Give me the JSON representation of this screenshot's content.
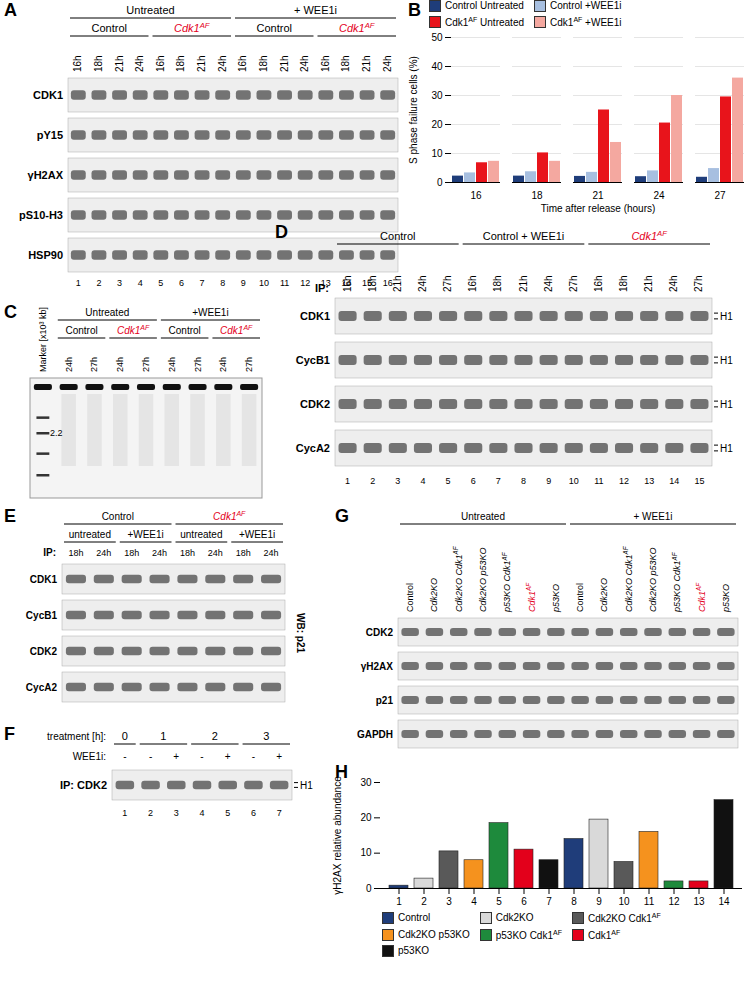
{
  "blots": [
    {
      "label": "A",
      "groups": [
        {
          "text": "Untreated",
          "lanes": [
            1,
            8
          ]
        },
        {
          "text": "+ WEE1i",
          "lanes": [
            9,
            16
          ]
        }
      ],
      "subgroups": [
        {
          "text": "Control",
          "lanes": [
            1,
            4
          ]
        },
        {
          "text": "Cdk1AF",
          "lanes": [
            5,
            8
          ]
        },
        {
          "text": "Control",
          "lanes": [
            9,
            12
          ]
        },
        {
          "text": "Cdk1AF",
          "lanes": [
            13,
            16
          ]
        }
      ],
      "lane_labels": [
        "16h",
        "18h",
        "21h",
        "24h",
        "16h",
        "18h",
        "21h",
        "24h",
        "16h",
        "18h",
        "21h",
        "24h",
        "16h",
        "18h",
        "21h",
        "24h"
      ],
      "rows": [
        "CDK1",
        "pY15",
        "γH2AX",
        "pS10-H3",
        "HSP90"
      ],
      "lane_numbers": [
        1,
        2,
        3,
        4,
        5,
        6,
        7,
        8,
        9,
        10,
        11,
        12,
        13,
        14,
        15,
        16
      ]
    },
    {
      "label": "C",
      "groups": [
        {
          "text": "Untreated",
          "lanes": [
            2,
            5
          ]
        },
        {
          "text": "+WEE1i",
          "lanes": [
            6,
            9
          ]
        }
      ],
      "subgroups": [
        {
          "text": "Control",
          "lanes": [
            2,
            3
          ]
        },
        {
          "text": "Cdk1AF",
          "lanes": [
            4,
            5
          ]
        },
        {
          "text": "Control",
          "lanes": [
            6,
            7
          ]
        },
        {
          "text": "Cdk1AF",
          "lanes": [
            8,
            9
          ]
        }
      ],
      "lane_labels": [
        "Marker [x10³ kb]",
        "24h",
        "27h",
        "24h",
        "27h",
        "24h",
        "27h",
        "24h",
        "27h"
      ],
      "marker_label": "2.2"
    },
    {
      "label": "D",
      "groups": [
        {
          "text": "Control",
          "lanes": [
            1,
            5
          ]
        },
        {
          "text": "Control + WEE1i",
          "lanes": [
            6,
            10
          ]
        },
        {
          "text": "Cdk1AF",
          "lanes": [
            11,
            15
          ]
        }
      ],
      "ip_label": "IP:",
      "lane_labels": [
        "16h",
        "18h",
        "21h",
        "24h",
        "27h",
        "16h",
        "18h",
        "21h",
        "24h",
        "27h",
        "16h",
        "18h",
        "21h",
        "24h",
        "27h"
      ],
      "rows": [
        "CDK1",
        "CycB1",
        "CDK2",
        "CycA2"
      ],
      "right_label": "H1",
      "lane_numbers": [
        1,
        2,
        3,
        4,
        5,
        6,
        7,
        8,
        9,
        10,
        11,
        12,
        13,
        14,
        15
      ]
    },
    {
      "label": "E",
      "groups": [
        {
          "text": "Control",
          "lanes": [
            1,
            4
          ]
        },
        {
          "text": "Cdk1AF",
          "lanes": [
            5,
            8
          ]
        }
      ],
      "subgroups": [
        {
          "text": "untreated",
          "lanes": [
            1,
            2
          ]
        },
        {
          "text": "+WEE1i",
          "lanes": [
            3,
            4
          ]
        },
        {
          "text": "untreated",
          "lanes": [
            5,
            6
          ]
        },
        {
          "text": "+WEE1i",
          "lanes": [
            7,
            8
          ]
        }
      ],
      "ip_label": "IP:",
      "lane_labels": [
        "18h",
        "24h",
        "18h",
        "24h",
        "18h",
        "24h",
        "18h",
        "24h"
      ],
      "rows": [
        "CDK1",
        "CycB1",
        "CDK2",
        "CycA2"
      ],
      "side_label": "WB: p21"
    },
    {
      "label": "F",
      "groups_title": "treatment [h]:",
      "groups": [
        {
          "text": "0",
          "lanes": [
            1,
            1
          ]
        },
        {
          "text": "1",
          "lanes": [
            2,
            3
          ]
        },
        {
          "text": "2",
          "lanes": [
            4,
            5
          ]
        },
        {
          "text": "3",
          "lanes": [
            6,
            7
          ]
        }
      ],
      "lane_labels_title": "WEE1i:",
      "lane_labels": [
        "-",
        "-",
        "+",
        "-",
        "+",
        "-",
        "+"
      ],
      "rows": [
        "IP: CDK2"
      ],
      "right_label": "H1",
      "lane_numbers": [
        1,
        2,
        3,
        4,
        5,
        6,
        7
      ]
    },
    {
      "label": "G",
      "groups": [
        {
          "text": "Untreated",
          "lanes": [
            1,
            7
          ]
        },
        {
          "text": "+ WEE1i",
          "lanes": [
            8,
            14
          ]
        }
      ],
      "lane_labels": [
        "Control",
        "Cdk2KO",
        "Cdk2KO Cdk1AF",
        "Cdk2KO p53KO",
        "p53KO Cdk1AF",
        "Cdk1AF",
        "p53KO",
        "Control",
        "Cdk2KO",
        "Cdk2KO Cdk1AF",
        "Cdk2KO p53KO",
        "p53KO Cdk1AF",
        "Cdk1AF",
        "p53KO"
      ],
      "rows": [
        "CDK2",
        "γH2AX",
        "p21",
        "GAPDH"
      ]
    }
  ],
  "chart_data": [
    {
      "panel": "B",
      "type": "bar",
      "categories": [
        16,
        18,
        21,
        24,
        27
      ],
      "x_label": "Time after release (hours)",
      "y_label": "S phase failure cells (%)",
      "series": [
        {
          "name": "Control Untreated",
          "color": "#1f3d7a",
          "values": [
            2.2,
            2.2,
            2.1,
            2.0,
            1.8
          ]
        },
        {
          "name": "Control +WEE1i",
          "color": "#a7bfe0",
          "values": [
            3.3,
            3.7,
            3.5,
            4.0,
            4.8
          ]
        },
        {
          "name": "Cdk1AF Untreated",
          "color": "#e8141b",
          "values": [
            6.8,
            10.2,
            25,
            20.5,
            29.5
          ]
        },
        {
          "name": "Cdk1AF +WEE1i",
          "color": "#f4a8a0",
          "values": [
            7.3,
            7.3,
            13.8,
            30,
            36
          ]
        }
      ],
      "ylim": [
        0,
        50
      ],
      "yticks": [
        0,
        10,
        20,
        30,
        40,
        50
      ],
      "grid": true,
      "legend": "top"
    },
    {
      "panel": "H",
      "type": "bar",
      "categories": [
        1,
        2,
        3,
        4,
        5,
        6,
        7,
        8,
        9,
        10,
        11,
        12,
        13,
        14
      ],
      "y_label": "γH2AX relative abundance",
      "values": [
        0.8,
        2.8,
        10.5,
        8,
        18.5,
        11,
        8,
        14,
        19.5,
        7.5,
        16,
        2,
        2,
        25
      ],
      "colors": [
        "#1f3d7a",
        "#d9d9d9",
        "#595959",
        "#f5921e",
        "#1e8a3c",
        "#e3001b",
        "#111111",
        "#1f3d7a",
        "#d9d9d9",
        "#595959",
        "#f5921e",
        "#1e8a3c",
        "#e3001b",
        "#111111"
      ],
      "groups": [
        {
          "name": "Control",
          "color": "#1f3d7a"
        },
        {
          "name": "Cdk2KO",
          "color": "#d9d9d9"
        },
        {
          "name": "Cdk2KO Cdk1AF",
          "color": "#595959"
        },
        {
          "name": "Cdk2KO p53KO",
          "color": "#f5921e"
        },
        {
          "name": "p53KO Cdk1AF",
          "color": "#1e8a3c"
        },
        {
          "name": "Cdk1AF",
          "color": "#e3001b"
        },
        {
          "name": "p53KO",
          "color": "#111111"
        }
      ],
      "ylim": [
        0,
        30
      ],
      "yticks": [
        0,
        10,
        20,
        30
      ],
      "grid": false,
      "legend": "bottom"
    }
  ]
}
